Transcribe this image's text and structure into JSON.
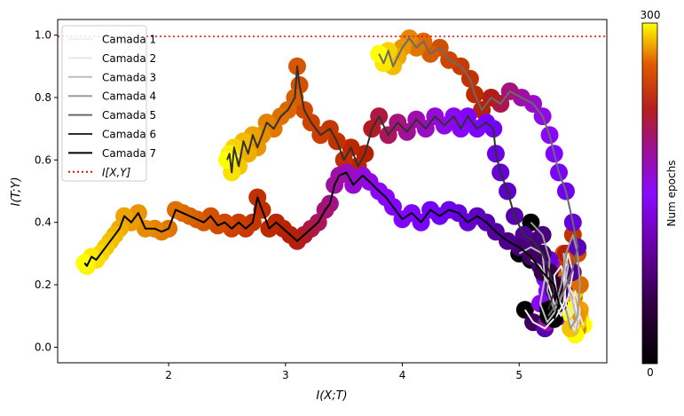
{
  "chart_data": {
    "type": "scatter",
    "xlabel": "I(X;T)",
    "ylabel": "I(T;Y)",
    "xlim": [
      1.05,
      5.75
    ],
    "ylim": [
      -0.05,
      1.05
    ],
    "x_ticks": [
      2,
      3,
      4,
      5
    ],
    "y_ticks": [
      0.0,
      0.2,
      0.4,
      0.6,
      0.8,
      1.0
    ],
    "x_tick_labels": [
      "2",
      "3",
      "4",
      "5"
    ],
    "y_tick_labels": [
      "0.0",
      "0.2",
      "0.4",
      "0.6",
      "0.8",
      "1.0"
    ],
    "reference_line": {
      "y": 1.0,
      "label": "I[X,Y]",
      "color": "#ff0000",
      "style": "dotted"
    },
    "legend": {
      "placement": "top-left",
      "entries": [
        "Camada 1",
        "Camada 2",
        "Camada 3",
        "Camada 4",
        "Camada 5",
        "Camada 6",
        "Camada 7",
        "I[X,Y]"
      ]
    },
    "colorbar": {
      "label": "Num epochs",
      "min_label": "0",
      "max_label": "300",
      "min": 0,
      "max": 300,
      "colormap": "gnuplot"
    },
    "grid": false,
    "series": [
      {
        "name": "Camada 1",
        "color": "#f0f0f0",
        "points": [
          [
            5.05,
            0.12
          ],
          [
            5.12,
            0.08
          ],
          [
            5.22,
            0.06
          ],
          [
            5.32,
            0.1
          ],
          [
            5.38,
            0.14
          ],
          [
            5.4,
            0.2
          ],
          [
            5.36,
            0.26
          ],
          [
            5.3,
            0.23
          ],
          [
            5.32,
            0.17
          ],
          [
            5.38,
            0.12
          ],
          [
            5.44,
            0.08
          ],
          [
            5.48,
            0.05
          ],
          [
            5.5,
            0.1
          ],
          [
            5.47,
            0.16
          ],
          [
            5.42,
            0.2
          ],
          [
            5.45,
            0.14
          ],
          [
            5.52,
            0.1
          ],
          [
            5.55,
            0.07
          ]
        ]
      },
      {
        "name": "Camada 2",
        "color": "#e6e6e6",
        "points": [
          [
            5.1,
            0.28
          ],
          [
            5.18,
            0.26
          ],
          [
            5.25,
            0.2
          ],
          [
            5.3,
            0.14
          ],
          [
            5.36,
            0.1
          ],
          [
            5.42,
            0.16
          ],
          [
            5.46,
            0.24
          ],
          [
            5.42,
            0.3
          ],
          [
            5.38,
            0.22
          ],
          [
            5.4,
            0.14
          ],
          [
            5.46,
            0.08
          ],
          [
            5.5,
            0.06
          ],
          [
            5.52,
            0.12
          ],
          [
            5.48,
            0.18
          ],
          [
            5.45,
            0.1
          ]
        ]
      },
      {
        "name": "Camada 3",
        "color": "#bdbdbd",
        "points": [
          [
            5.0,
            0.3
          ],
          [
            5.1,
            0.32
          ],
          [
            5.2,
            0.3
          ],
          [
            5.22,
            0.22
          ],
          [
            5.18,
            0.14
          ],
          [
            5.24,
            0.08
          ],
          [
            5.32,
            0.12
          ],
          [
            5.38,
            0.18
          ],
          [
            5.42,
            0.26
          ],
          [
            5.38,
            0.3
          ],
          [
            5.4,
            0.22
          ],
          [
            5.46,
            0.14
          ],
          [
            5.5,
            0.08
          ],
          [
            5.48,
            0.04
          ]
        ]
      },
      {
        "name": "Camada 4",
        "color": "#9a9a9a",
        "points": [
          [
            5.1,
            0.4
          ],
          [
            5.2,
            0.36
          ],
          [
            5.26,
            0.28
          ],
          [
            5.24,
            0.18
          ],
          [
            5.3,
            0.12
          ],
          [
            5.36,
            0.2
          ],
          [
            5.4,
            0.3
          ],
          [
            5.46,
            0.36
          ],
          [
            5.5,
            0.3
          ],
          [
            5.52,
            0.2
          ],
          [
            5.5,
            0.1
          ],
          [
            5.44,
            0.06
          ],
          [
            5.4,
            0.12
          ]
        ]
      },
      {
        "name": "Camada 5",
        "color": "#6a6a6a",
        "points": [
          [
            5.25,
            0.1
          ],
          [
            5.32,
            0.14
          ],
          [
            5.38,
            0.18
          ],
          [
            5.45,
            0.24
          ],
          [
            5.5,
            0.32
          ],
          [
            5.46,
            0.4
          ],
          [
            5.4,
            0.5
          ],
          [
            5.34,
            0.56
          ],
          [
            5.3,
            0.62
          ],
          [
            5.26,
            0.68
          ],
          [
            5.2,
            0.74
          ],
          [
            5.12,
            0.78
          ],
          [
            5.02,
            0.8
          ],
          [
            4.92,
            0.82
          ],
          [
            4.84,
            0.78
          ],
          [
            4.76,
            0.8
          ],
          [
            4.68,
            0.76
          ],
          [
            4.62,
            0.81
          ],
          [
            4.58,
            0.86
          ],
          [
            4.5,
            0.9
          ],
          [
            4.4,
            0.92
          ],
          [
            4.32,
            0.96
          ],
          [
            4.24,
            0.94
          ],
          [
            4.18,
            0.98
          ],
          [
            4.12,
            0.96
          ],
          [
            4.06,
            0.99
          ],
          [
            4.0,
            0.96
          ],
          [
            3.96,
            0.93
          ],
          [
            3.92,
            0.9
          ],
          [
            3.88,
            0.95
          ],
          [
            3.84,
            0.91
          ],
          [
            3.8,
            0.94
          ]
        ]
      },
      {
        "name": "Camada 6",
        "color": "#303030",
        "points": [
          [
            5.25,
            0.12
          ],
          [
            5.3,
            0.18
          ],
          [
            5.26,
            0.24
          ],
          [
            5.2,
            0.3
          ],
          [
            5.12,
            0.34
          ],
          [
            5.04,
            0.36
          ],
          [
            4.96,
            0.42
          ],
          [
            4.9,
            0.5
          ],
          [
            4.84,
            0.56
          ],
          [
            4.8,
            0.62
          ],
          [
            4.78,
            0.7
          ],
          [
            4.72,
            0.72
          ],
          [
            4.64,
            0.7
          ],
          [
            4.56,
            0.74
          ],
          [
            4.5,
            0.7
          ],
          [
            4.44,
            0.74
          ],
          [
            4.36,
            0.71
          ],
          [
            4.28,
            0.74
          ],
          [
            4.2,
            0.7
          ],
          [
            4.12,
            0.73
          ],
          [
            4.04,
            0.69
          ],
          [
            3.96,
            0.72
          ],
          [
            3.88,
            0.68
          ],
          [
            3.8,
            0.74
          ],
          [
            3.74,
            0.7
          ],
          [
            3.68,
            0.62
          ],
          [
            3.62,
            0.58
          ],
          [
            3.56,
            0.64
          ],
          [
            3.5,
            0.6
          ],
          [
            3.44,
            0.66
          ],
          [
            3.38,
            0.7
          ],
          [
            3.3,
            0.68
          ],
          [
            3.22,
            0.72
          ],
          [
            3.16,
            0.76
          ],
          [
            3.12,
            0.84
          ],
          [
            3.1,
            0.9
          ],
          [
            3.08,
            0.8
          ],
          [
            3.02,
            0.76
          ],
          [
            2.96,
            0.74
          ],
          [
            2.9,
            0.7
          ],
          [
            2.84,
            0.72
          ],
          [
            2.8,
            0.68
          ],
          [
            2.76,
            0.64
          ],
          [
            2.72,
            0.68
          ],
          [
            2.68,
            0.62
          ],
          [
            2.64,
            0.66
          ],
          [
            2.6,
            0.58
          ],
          [
            2.56,
            0.64
          ],
          [
            2.54,
            0.56
          ],
          [
            2.52,
            0.62
          ],
          [
            2.5,
            0.6
          ]
        ]
      },
      {
        "name": "Camada 7",
        "color": "#000000",
        "points": [
          [
            5.3,
            0.09
          ],
          [
            5.34,
            0.14
          ],
          [
            5.3,
            0.2
          ],
          [
            5.2,
            0.24
          ],
          [
            5.1,
            0.29
          ],
          [
            5.0,
            0.32
          ],
          [
            4.9,
            0.34
          ],
          [
            4.8,
            0.37
          ],
          [
            4.72,
            0.4
          ],
          [
            4.64,
            0.42
          ],
          [
            4.56,
            0.4
          ],
          [
            4.48,
            0.43
          ],
          [
            4.4,
            0.44
          ],
          [
            4.32,
            0.42
          ],
          [
            4.24,
            0.44
          ],
          [
            4.16,
            0.4
          ],
          [
            4.08,
            0.43
          ],
          [
            4.0,
            0.41
          ],
          [
            3.92,
            0.45
          ],
          [
            3.86,
            0.48
          ],
          [
            3.8,
            0.5
          ],
          [
            3.72,
            0.53
          ],
          [
            3.66,
            0.55
          ],
          [
            3.58,
            0.52
          ],
          [
            3.52,
            0.56
          ],
          [
            3.46,
            0.55
          ],
          [
            3.42,
            0.52
          ],
          [
            3.38,
            0.46
          ],
          [
            3.34,
            0.44
          ],
          [
            3.28,
            0.4
          ],
          [
            3.22,
            0.38
          ],
          [
            3.16,
            0.36
          ],
          [
            3.1,
            0.34
          ],
          [
            3.04,
            0.36
          ],
          [
            2.98,
            0.38
          ],
          [
            2.92,
            0.4
          ],
          [
            2.86,
            0.38
          ],
          [
            2.8,
            0.44
          ],
          [
            2.76,
            0.48
          ],
          [
            2.72,
            0.4
          ],
          [
            2.66,
            0.38
          ],
          [
            2.6,
            0.4
          ],
          [
            2.54,
            0.38
          ],
          [
            2.48,
            0.4
          ],
          [
            2.42,
            0.39
          ],
          [
            2.36,
            0.42
          ],
          [
            2.3,
            0.4
          ],
          [
            2.24,
            0.41
          ],
          [
            2.18,
            0.42
          ],
          [
            2.12,
            0.43
          ],
          [
            2.06,
            0.44
          ],
          [
            2.0,
            0.38
          ],
          [
            1.94,
            0.37
          ],
          [
            1.88,
            0.38
          ],
          [
            1.8,
            0.38
          ],
          [
            1.74,
            0.43
          ],
          [
            1.68,
            0.4
          ],
          [
            1.62,
            0.42
          ],
          [
            1.58,
            0.38
          ],
          [
            1.54,
            0.36
          ],
          [
            1.5,
            0.34
          ],
          [
            1.46,
            0.32
          ],
          [
            1.42,
            0.3
          ],
          [
            1.38,
            0.28
          ],
          [
            1.34,
            0.29
          ],
          [
            1.3,
            0.26
          ],
          [
            1.28,
            0.27
          ]
        ]
      }
    ]
  }
}
